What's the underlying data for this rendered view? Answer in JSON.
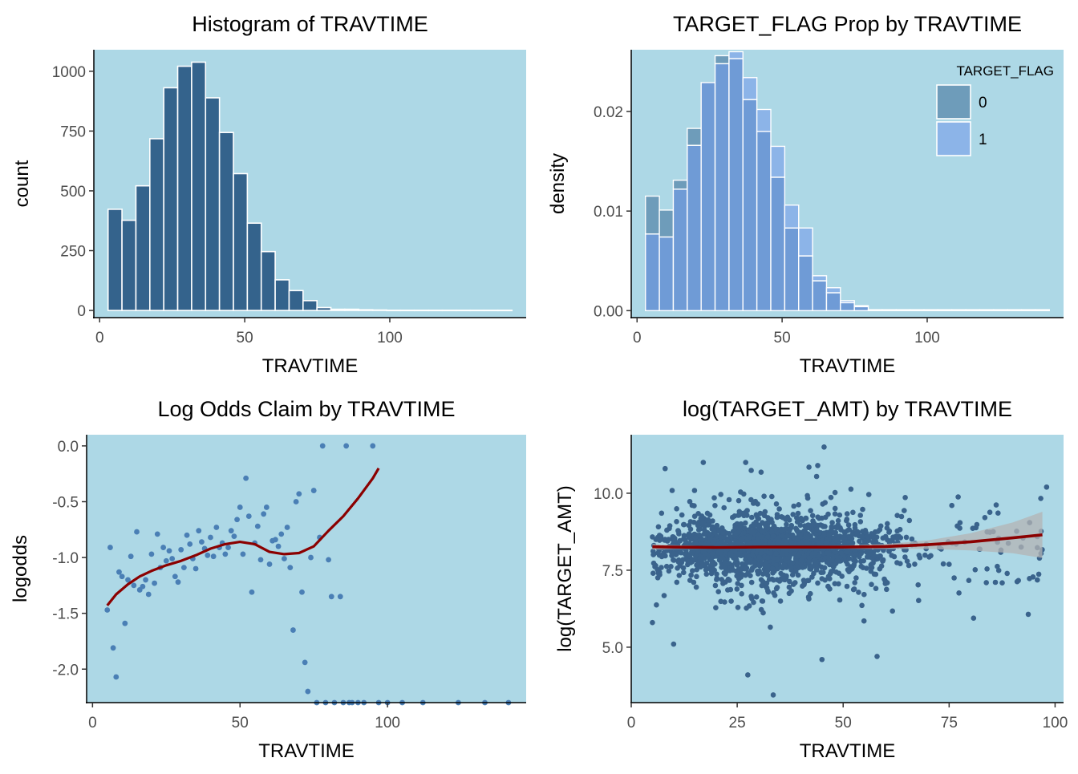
{
  "panels": [
    {
      "title": "Histogram of TRAVTIME",
      "xlabel": "TRAVTIME",
      "ylabel": "count",
      "bar_fill": "#34638c",
      "bar_stroke": "#ffffff",
      "panel_bg": "#add8e6",
      "xticks": [
        0,
        50,
        100
      ],
      "yticks": [
        0,
        250,
        500,
        750,
        1000
      ]
    },
    {
      "title": "TARGET_FLAG Prop by TRAVTIME",
      "xlabel": "TRAVTIME",
      "ylabel": "density",
      "colors": {
        "0": "#6e9cba",
        "1": "#8cb4e8",
        "overlap": "#6f9bd6"
      },
      "panel_bg": "#add8e6",
      "xticks": [
        0,
        50,
        100
      ],
      "yticks": [
        "0.00",
        "0.01",
        "0.02"
      ],
      "legend": {
        "title": "TARGET_FLAG",
        "items": [
          "0",
          "1"
        ],
        "position": "top-right"
      }
    },
    {
      "title": "Log Odds Claim by TRAVTIME",
      "xlabel": "TRAVTIME",
      "ylabel": "logodds",
      "point_color": "#4a7fb5",
      "line_color": "#8b0000",
      "panel_bg": "#add8e6",
      "xticks": [
        0,
        50,
        100
      ],
      "yticks": [
        "0.0",
        "-0.5",
        "-1.0",
        "-1.5",
        "-2.0"
      ]
    },
    {
      "title": "log(TARGET_AMT) by TRAVTIME",
      "xlabel": "TRAVTIME",
      "ylabel": "log(TARGET_AMT)",
      "point_color": "#3a638c",
      "line_color": "#8b0000",
      "band_color": "#b4b4b4",
      "panel_bg": "#add8e6",
      "xticks": [
        0,
        25,
        50,
        75,
        100
      ],
      "yticks": [
        "5.0",
        "7.5",
        "10.0"
      ]
    }
  ],
  "chart_data": [
    {
      "type": "bar",
      "title": "Histogram of TRAVTIME",
      "xlabel": "TRAVTIME",
      "ylabel": "count",
      "xlim": [
        -2,
        147
      ],
      "ylim": [
        -30,
        1090
      ],
      "bin_width": 4.8,
      "bin_starts": [
        2.9,
        7.7,
        12.5,
        17.3,
        22.1,
        26.9,
        31.7,
        36.5,
        41.3,
        46.1,
        50.9,
        55.7,
        60.5,
        65.3,
        70.1,
        74.9,
        79.7,
        84.5,
        89.3,
        94.1,
        98.9,
        103.7,
        108.5,
        113.3,
        118.1,
        122.9,
        127.7,
        132.5,
        137.3
      ],
      "values": [
        423,
        377,
        521,
        718,
        931,
        1021,
        1038,
        889,
        744,
        572,
        365,
        246,
        128,
        83,
        41,
        12,
        5,
        5,
        3,
        2,
        1,
        1,
        1,
        1,
        1,
        1,
        1,
        1,
        1
      ]
    },
    {
      "type": "bar",
      "title": "TARGET_FLAG Prop by TRAVTIME",
      "xlabel": "TRAVTIME",
      "ylabel": "density",
      "xlim": [
        -2,
        147
      ],
      "ylim": [
        -0.0007,
        0.0262
      ],
      "bin_width": 4.8,
      "bin_starts": [
        2.9,
        7.7,
        12.5,
        17.3,
        22.1,
        26.9,
        31.7,
        36.5,
        41.3,
        46.1,
        50.9,
        55.7,
        60.5,
        65.3,
        70.1,
        74.9,
        79.7,
        84.5,
        89.3,
        94.1,
        98.9,
        103.7,
        108.5,
        113.3,
        118.1,
        122.9,
        127.7,
        132.5,
        137.3
      ],
      "series": [
        {
          "name": "0",
          "values": [
            0.0115,
            0.0101,
            0.0131,
            0.0183,
            0.0229,
            0.0256,
            0.0253,
            0.0212,
            0.018,
            0.0134,
            0.0083,
            0.0055,
            0.003,
            0.0018,
            0.0008,
            0.0004,
            0.0001,
            0.0001,
            0.0001,
            0.0001,
            0.0001,
            0.0001,
            0.0001,
            0.0001,
            0.0001,
            0.0001,
            0.0001,
            0.0001,
            0.0001
          ]
        },
        {
          "name": "1",
          "values": [
            0.0077,
            0.0074,
            0.0122,
            0.0166,
            0.0229,
            0.0248,
            0.026,
            0.0234,
            0.0202,
            0.0165,
            0.0106,
            0.0083,
            0.0035,
            0.0023,
            0.001,
            0.0005,
            0.0001,
            0.0001,
            0.0001,
            0.0001,
            0.0001,
            0.0001,
            0.0001,
            0.0001,
            0.0001,
            0.0001,
            0.0001,
            0.0001,
            0.0001
          ]
        }
      ]
    },
    {
      "type": "scatter",
      "title": "Log Odds Claim by TRAVTIME",
      "xlabel": "TRAVTIME",
      "ylabel": "logodds",
      "xlim": [
        -2,
        147
      ],
      "ylim": [
        -2.3,
        0.1
      ],
      "x": [
        5,
        6,
        7,
        8,
        9,
        10,
        11,
        12,
        13,
        14,
        15,
        16,
        17,
        18,
        19,
        20,
        21,
        22,
        23,
        24,
        25,
        26,
        27,
        28,
        29,
        30,
        31,
        32,
        33,
        34,
        35,
        36,
        37,
        38,
        39,
        40,
        41,
        42,
        43,
        44,
        45,
        46,
        47,
        48,
        49,
        50,
        51,
        52,
        53,
        54,
        55,
        56,
        57,
        58,
        59,
        60,
        61,
        62,
        63,
        64,
        65,
        66,
        67,
        68,
        69,
        70,
        71,
        72,
        73,
        74,
        75,
        76,
        77,
        78,
        79,
        80,
        81,
        82,
        84,
        85,
        86,
        87,
        88,
        90,
        92,
        95,
        97,
        100,
        105,
        112,
        124,
        133,
        141
      ],
      "y": [
        -1.47,
        -0.91,
        -1.81,
        -2.07,
        -1.13,
        -1.17,
        -1.59,
        -1.2,
        -0.99,
        -1.25,
        -0.77,
        -1.29,
        -1.26,
        -1.2,
        -1.33,
        -0.97,
        -1.23,
        -0.79,
        -1.09,
        -0.91,
        -1.03,
        -0.94,
        -1.01,
        -1.17,
        -1.22,
        -0.93,
        -1.09,
        -0.8,
        -0.88,
        -1.01,
        -1.1,
        -0.76,
        -0.86,
        -0.92,
        -0.98,
        -0.82,
        -0.99,
        -0.73,
        -0.91,
        -0.87,
        -0.97,
        -0.91,
        -0.76,
        -0.81,
        -0.66,
        -0.55,
        -0.97,
        -0.29,
        -0.63,
        -1.31,
        -0.87,
        -0.72,
        -1.02,
        -0.61,
        -0.55,
        -1.06,
        -0.85,
        -0.84,
        -0.9,
        -0.79,
        -1.01,
        -0.73,
        -1.09,
        -1.65,
        -0.5,
        -0.43,
        -1.31,
        -1.94,
        -2.2,
        -1.0,
        -0.4,
        -2.3,
        -0.82,
        0.0,
        -2.3,
        -1.02,
        -1.35,
        -2.3,
        -1.35,
        -2.3,
        0.0,
        -2.3,
        -2.3,
        -2.3,
        -2.3,
        0.0,
        -2.3,
        -2.3,
        -2.3,
        -2.3,
        -2.3,
        -2.3,
        -2.3
      ],
      "smooth_x": [
        5,
        8,
        12,
        16,
        20,
        25,
        30,
        35,
        40,
        45,
        50,
        55,
        60,
        65,
        70,
        75,
        80,
        85,
        90,
        95,
        97
      ],
      "smooth_y": [
        -1.43,
        -1.33,
        -1.24,
        -1.17,
        -1.12,
        -1.07,
        -1.03,
        -0.98,
        -0.92,
        -0.88,
        -0.86,
        -0.88,
        -0.95,
        -0.97,
        -0.96,
        -0.9,
        -0.76,
        -0.63,
        -0.47,
        -0.29,
        -0.2
      ]
    },
    {
      "type": "scatter",
      "title": "log(TARGET_AMT) by TRAVTIME",
      "xlabel": "TRAVTIME",
      "ylabel": "log(TARGET_AMT)",
      "xlim": [
        0,
        102
      ],
      "ylim": [
        3.2,
        11.9
      ],
      "notable_points": {
        "x": [
          33.5,
          27.5,
          45,
          58,
          5,
          10,
          45.5,
          27,
          8,
          17,
          44,
          98
        ],
        "y": [
          3.45,
          4.1,
          4.6,
          4.7,
          5.8,
          5.1,
          11.5,
          11.0,
          10.8,
          11.0,
          10.9,
          10.2
        ]
      },
      "smooth_x": [
        5,
        10,
        20,
        30,
        40,
        50,
        60,
        70,
        80,
        90,
        97
      ],
      "smooth_y": [
        8.26,
        8.25,
        8.24,
        8.25,
        8.25,
        8.25,
        8.27,
        8.33,
        8.42,
        8.55,
        8.65
      ],
      "band_upper": [
        8.35,
        8.31,
        8.28,
        8.29,
        8.29,
        8.3,
        8.35,
        8.47,
        8.7,
        9.05,
        9.4
      ],
      "band_lower": [
        8.17,
        8.19,
        8.2,
        8.21,
        8.21,
        8.2,
        8.19,
        8.19,
        8.14,
        8.05,
        7.9
      ]
    }
  ]
}
